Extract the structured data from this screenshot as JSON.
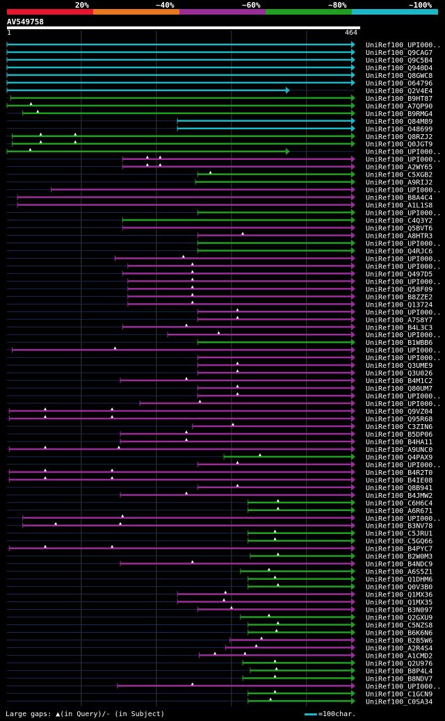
{
  "query": {
    "name": "AV549758",
    "start": "1",
    "end": "464",
    "length": 464
  },
  "scale_labels": [
    "20%",
    "~40%",
    "~60%",
    "~80%",
    "~100%"
  ],
  "scale_colors": [
    "#e8162c",
    "#e8771e",
    "#9b2d9b",
    "#20a020",
    "#1ab8c9"
  ],
  "footer": {
    "legend": "Large gaps: ▲(in Query)/- (in Subject)",
    "scale": "=100char."
  },
  "hits": [
    {
      "name": "UniRef100_UPI000..",
      "start": 1,
      "end": 464,
      "cls": 4
    },
    {
      "name": "UniRef100_Q9CAG7",
      "start": 1,
      "end": 464,
      "cls": 4
    },
    {
      "name": "UniRef100_Q9C5B4",
      "start": 1,
      "end": 464,
      "cls": 4
    },
    {
      "name": "UniRef100_Q940D4",
      "start": 1,
      "end": 464,
      "cls": 4
    },
    {
      "name": "UniRef100_Q8GWC8",
      "start": 1,
      "end": 464,
      "cls": 4
    },
    {
      "name": "UniRef100_O64796",
      "start": 1,
      "end": 464,
      "cls": 4
    },
    {
      "name": "UniRef100_Q2V4E4",
      "start": 1,
      "end": 377,
      "cls": 4
    },
    {
      "name": "UniRef100_B9HT87",
      "start": 6,
      "end": 464,
      "cls": 3
    },
    {
      "name": "UniRef100_A7QP90",
      "start": 1,
      "end": 464,
      "cls": 3,
      "gaps": [
        33
      ]
    },
    {
      "name": "UniRef100_B9RMG4",
      "start": 22,
      "end": 464,
      "cls": 3,
      "gaps": [
        42
      ]
    },
    {
      "name": "UniRef100_Q84M89",
      "start": 228,
      "end": 464,
      "cls": 4
    },
    {
      "name": "UniRef100_O48699",
      "start": 228,
      "end": 464,
      "cls": 4
    },
    {
      "name": "UniRef100_Q8RZJ2",
      "start": 8,
      "end": 464,
      "cls": 3,
      "gaps": [
        46,
        92
      ]
    },
    {
      "name": "UniRef100_Q0JGT9",
      "start": 8,
      "end": 464,
      "cls": 3,
      "gaps": [
        46,
        92
      ]
    },
    {
      "name": "UniRef100_UPI000..",
      "start": 1,
      "end": 377,
      "cls": 3,
      "gaps": [
        32
      ]
    },
    {
      "name": "UniRef100_UPI000..",
      "start": 155,
      "end": 464,
      "cls": 2,
      "gaps": [
        188,
        205
      ]
    },
    {
      "name": "UniRef100_A2WY65",
      "start": 155,
      "end": 464,
      "cls": 2,
      "gaps": [
        188,
        205
      ]
    },
    {
      "name": "UniRef100_C5XGB2",
      "start": 255,
      "end": 464,
      "cls": 3,
      "gaps": [
        272
      ]
    },
    {
      "name": "UniRef100_A9RIJ2",
      "start": 252,
      "end": 464,
      "cls": 3
    },
    {
      "name": "UniRef100_UPI000..",
      "start": 60,
      "end": 464,
      "cls": 2
    },
    {
      "name": "UniRef100_B8A4C4",
      "start": 15,
      "end": 464,
      "cls": 2
    },
    {
      "name": "UniRef100_A1L1S8",
      "start": 15,
      "end": 464,
      "cls": 2
    },
    {
      "name": "UniRef100_UPI000..",
      "start": 255,
      "end": 464,
      "cls": 3
    },
    {
      "name": "UniRef100_C4Q3Y2",
      "start": 155,
      "end": 464,
      "cls": 3
    },
    {
      "name": "UniRef100_Q5BVT6",
      "start": 155,
      "end": 464,
      "cls": 2
    },
    {
      "name": "UniRef100_A8HTR3",
      "start": 255,
      "end": 464,
      "cls": 2,
      "gaps": [
        315
      ]
    },
    {
      "name": "UniRef100_UPI000..",
      "start": 255,
      "end": 464,
      "cls": 3
    },
    {
      "name": "UniRef100_Q4RJC6",
      "start": 255,
      "end": 464,
      "cls": 3
    },
    {
      "name": "UniRef100_UPI000..",
      "start": 145,
      "end": 464,
      "cls": 2,
      "gaps": [
        236
      ]
    },
    {
      "name": "UniRef100_UPI000..",
      "start": 162,
      "end": 464,
      "cls": 2,
      "gaps": [
        248
      ]
    },
    {
      "name": "UniRef100_Q497D5",
      "start": 155,
      "end": 464,
      "cls": 2,
      "gaps": [
        248
      ]
    },
    {
      "name": "UniRef100_UPI000..",
      "start": 162,
      "end": 464,
      "cls": 2,
      "gaps": [
        248
      ]
    },
    {
      "name": "UniRef100_Q58F09",
      "start": 162,
      "end": 464,
      "cls": 2,
      "gaps": [
        248
      ]
    },
    {
      "name": "UniRef100_B8ZZE2",
      "start": 162,
      "end": 464,
      "cls": 2,
      "gaps": [
        248
      ]
    },
    {
      "name": "UniRef100_Q13724",
      "start": 162,
      "end": 464,
      "cls": 2,
      "gaps": [
        248
      ]
    },
    {
      "name": "UniRef100_UPI000..",
      "start": 255,
      "end": 464,
      "cls": 2,
      "gaps": [
        308
      ]
    },
    {
      "name": "UniRef100_A7S8Y7",
      "start": 255,
      "end": 464,
      "cls": 2,
      "gaps": [
        308
      ]
    },
    {
      "name": "UniRef100_B4L3C3",
      "start": 155,
      "end": 464,
      "cls": 2,
      "gaps": [
        240
      ]
    },
    {
      "name": "UniRef100_UPI000..",
      "start": 215,
      "end": 464,
      "cls": 2,
      "gaps": [
        283
      ]
    },
    {
      "name": "UniRef100_B1WBB6",
      "start": 255,
      "end": 464,
      "cls": 3
    },
    {
      "name": "UniRef100_UPI000..",
      "start": 8,
      "end": 464,
      "cls": 2,
      "gaps": [
        145
      ]
    },
    {
      "name": "UniRef100_UPI000..",
      "start": 255,
      "end": 464,
      "cls": 2
    },
    {
      "name": "UniRef100_Q3UME9",
      "start": 255,
      "end": 464,
      "cls": 2,
      "gaps": [
        308
      ]
    },
    {
      "name": "UniRef100_Q3U026",
      "start": 255,
      "end": 464,
      "cls": 2,
      "gaps": [
        308
      ]
    },
    {
      "name": "UniRef100_B4M1C2",
      "start": 152,
      "end": 464,
      "cls": 2,
      "gaps": [
        240
      ]
    },
    {
      "name": "UniRef100_Q80UM7",
      "start": 255,
      "end": 464,
      "cls": 2,
      "gaps": [
        308
      ]
    },
    {
      "name": "UniRef100_UPI000..",
      "start": 255,
      "end": 464,
      "cls": 2,
      "gaps": [
        308
      ]
    },
    {
      "name": "UniRef100_UPI000..",
      "start": 178,
      "end": 464,
      "cls": 2,
      "gaps": [
        258
      ]
    },
    {
      "name": "UniRef100_Q9VZ04",
      "start": 4,
      "end": 464,
      "cls": 2,
      "gaps": [
        52,
        141
      ]
    },
    {
      "name": "UniRef100_Q95R68",
      "start": 4,
      "end": 464,
      "cls": 2,
      "gaps": [
        52,
        141
      ]
    },
    {
      "name": "UniRef100_C3ZIN6",
      "start": 248,
      "end": 464,
      "cls": 2,
      "gaps": [
        302
      ]
    },
    {
      "name": "UniRef100_B5DP06",
      "start": 152,
      "end": 464,
      "cls": 2,
      "gaps": [
        240
      ]
    },
    {
      "name": "UniRef100_B4HA11",
      "start": 152,
      "end": 464,
      "cls": 2,
      "gaps": [
        240
      ]
    },
    {
      "name": "UniRef100_A9UNC0",
      "start": 4,
      "end": 464,
      "cls": 2,
      "gaps": [
        52,
        150
      ]
    },
    {
      "name": "UniRef100_Q4PAX9",
      "start": 290,
      "end": 464,
      "cls": 3,
      "gaps": [
        338
      ]
    },
    {
      "name": "UniRef100_UPI000..",
      "start": 255,
      "end": 464,
      "cls": 2,
      "gaps": [
        308
      ]
    },
    {
      "name": "UniRef100_B4R2T0",
      "start": 4,
      "end": 464,
      "cls": 2,
      "gaps": [
        52,
        141
      ]
    },
    {
      "name": "UniRef100_B4IE08",
      "start": 4,
      "end": 464,
      "cls": 2,
      "gaps": [
        52,
        141
      ]
    },
    {
      "name": "UniRef100_Q8B941",
      "start": 255,
      "end": 464,
      "cls": 2,
      "gaps": [
        308
      ]
    },
    {
      "name": "UniRef100_B4JMW2",
      "start": 152,
      "end": 464,
      "cls": 2,
      "gaps": [
        240
      ]
    },
    {
      "name": "UniRef100_C6H6C4",
      "start": 322,
      "end": 464,
      "cls": 3,
      "gaps": [
        362
      ]
    },
    {
      "name": "UniRef100_A6R671",
      "start": 322,
      "end": 464,
      "cls": 3,
      "gaps": [
        362
      ]
    },
    {
      "name": "UniRef100_UPI000..",
      "start": 22,
      "end": 464,
      "cls": 2,
      "gaps": [
        155
      ]
    },
    {
      "name": "UniRef100_B3NV78",
      "start": 22,
      "end": 464,
      "cls": 2,
      "gaps": [
        66,
        152
      ]
    },
    {
      "name": "UniRef100_C5JRU1",
      "start": 322,
      "end": 464,
      "cls": 3,
      "gaps": [
        358
      ]
    },
    {
      "name": "UniRef100_C5GQ66",
      "start": 322,
      "end": 464,
      "cls": 3,
      "gaps": [
        358
      ]
    },
    {
      "name": "UniRef100_B4PYC7",
      "start": 4,
      "end": 464,
      "cls": 2,
      "gaps": [
        52,
        141
      ]
    },
    {
      "name": "UniRef100_B2W0M3",
      "start": 325,
      "end": 464,
      "cls": 3,
      "gaps": [
        362
      ]
    },
    {
      "name": "UniRef100_B4NDC9",
      "start": 152,
      "end": 464,
      "cls": 2,
      "gaps": [
        248
      ]
    },
    {
      "name": "UniRef100_A6S5Z1",
      "start": 312,
      "end": 464,
      "cls": 3,
      "gaps": [
        350
      ]
    },
    {
      "name": "UniRef100_Q1DHM6",
      "start": 322,
      "end": 464,
      "cls": 3,
      "gaps": [
        358
      ]
    },
    {
      "name": "UniRef100_Q0V3B0",
      "start": 322,
      "end": 464,
      "cls": 3,
      "gaps": [
        362
      ]
    },
    {
      "name": "UniRef100_Q1MX36",
      "start": 228,
      "end": 464,
      "cls": 2,
      "gaps": [
        292
      ]
    },
    {
      "name": "UniRef100_Q1MX35",
      "start": 228,
      "end": 464,
      "cls": 2,
      "gaps": [
        290
      ]
    },
    {
      "name": "UniRef100_B3N097",
      "start": 255,
      "end": 464,
      "cls": 2,
      "gaps": [
        300
      ]
    },
    {
      "name": "UniRef100_Q2GXU9",
      "start": 312,
      "end": 464,
      "cls": 3,
      "gaps": [
        350
      ]
    },
    {
      "name": "UniRef100_C5NZS8",
      "start": 322,
      "end": 464,
      "cls": 3,
      "gaps": [
        362
      ]
    },
    {
      "name": "UniRef100_B6K6N6",
      "start": 322,
      "end": 464,
      "cls": 3,
      "gaps": [
        360
      ]
    },
    {
      "name": "UniRef100_B2B5W6",
      "start": 298,
      "end": 464,
      "cls": 2,
      "gaps": [
        340
      ]
    },
    {
      "name": "UniRef100_A2R4S4",
      "start": 292,
      "end": 464,
      "cls": 2,
      "gaps": [
        333
      ]
    },
    {
      "name": "UniRef100_A1CMD2",
      "start": 257,
      "end": 464,
      "cls": 2,
      "gaps": [
        278,
        318
      ]
    },
    {
      "name": "UniRef100_Q2U976",
      "start": 315,
      "end": 464,
      "cls": 3,
      "gaps": [
        358
      ]
    },
    {
      "name": "UniRef100_B8P4L4",
      "start": 325,
      "end": 464,
      "cls": 3,
      "gaps": [
        360
      ]
    },
    {
      "name": "UniRef100_B8NDV7",
      "start": 315,
      "end": 464,
      "cls": 3,
      "gaps": [
        358
      ]
    },
    {
      "name": "UniRef100_UPI000..",
      "start": 148,
      "end": 464,
      "cls": 2,
      "gaps": [
        248
      ]
    },
    {
      "name": "UniRef100_C1GCN9",
      "start": 322,
      "end": 464,
      "cls": 3,
      "gaps": [
        358
      ]
    },
    {
      "name": "UniRef100_C0SA34",
      "start": 322,
      "end": 464,
      "cls": 3,
      "gaps": [
        352
      ]
    }
  ]
}
